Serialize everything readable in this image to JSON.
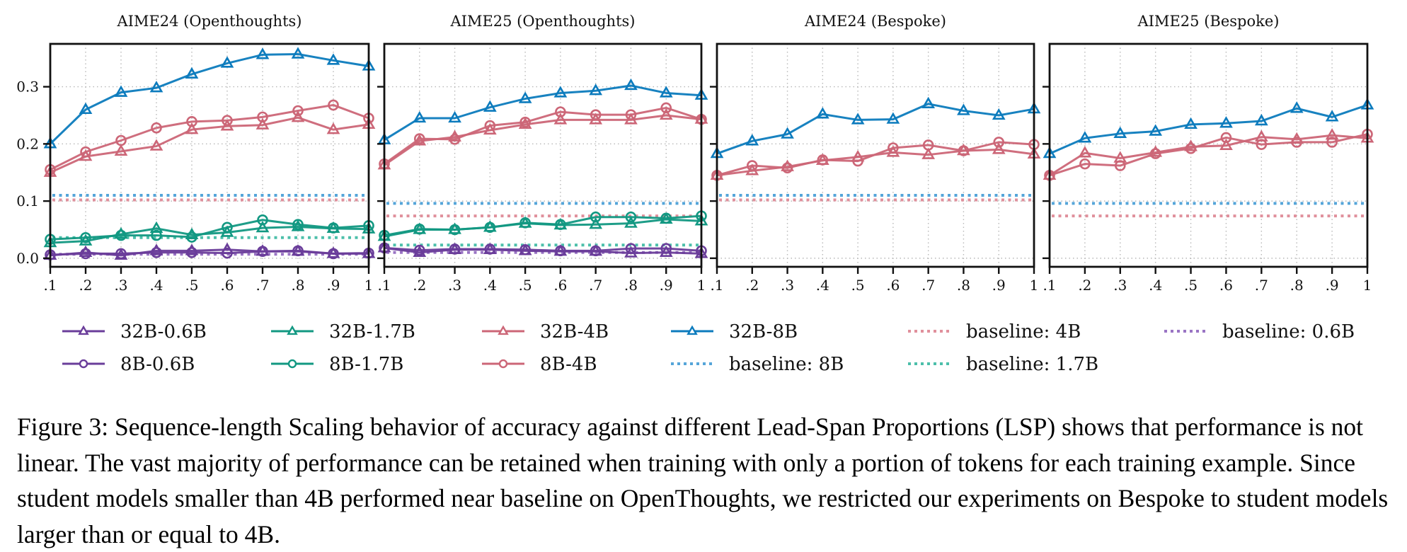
{
  "chart_data": [
    {
      "type": "line",
      "title": "AIME24 (Openthoughts)",
      "xlabel": "",
      "ylabel": "",
      "x": [
        0.1,
        0.2,
        0.3,
        0.4,
        0.5,
        0.6,
        0.7,
        0.8,
        0.9,
        1.0
      ],
      "xtick_labels": [
        ".1",
        ".2",
        ".3",
        ".4",
        ".5",
        ".6",
        ".7",
        ".8",
        ".9",
        "1"
      ],
      "yticks": [
        0.0,
        0.1,
        0.2,
        0.3
      ],
      "ytick_labels": [
        "0.0",
        "0.1",
        "0.2",
        "0.3"
      ],
      "show_yticklabels": true,
      "ylim": [
        -0.015,
        0.375
      ],
      "grid": true,
      "series": [
        {
          "name": "32B-0.6B",
          "values": [
            0.005,
            0.01,
            0.005,
            0.013,
            0.013,
            0.015,
            0.012,
            0.012,
            0.008,
            0.008
          ]
        },
        {
          "name": "8B-0.6B",
          "values": [
            0.006,
            0.008,
            0.008,
            0.01,
            0.01,
            0.009,
            0.012,
            0.013,
            0.008,
            0.009
          ]
        },
        {
          "name": "32B-1.7B",
          "values": [
            0.027,
            0.03,
            0.042,
            0.052,
            0.041,
            0.045,
            0.053,
            0.055,
            0.052,
            0.051
          ]
        },
        {
          "name": "8B-1.7B",
          "values": [
            0.033,
            0.036,
            0.04,
            0.04,
            0.037,
            0.054,
            0.067,
            0.059,
            0.053,
            0.057
          ]
        },
        {
          "name": "32B-4B",
          "values": [
            0.15,
            0.178,
            0.187,
            0.196,
            0.225,
            0.231,
            0.233,
            0.246,
            0.225,
            0.234
          ]
        },
        {
          "name": "8B-4B",
          "values": [
            0.155,
            0.186,
            0.206,
            0.228,
            0.239,
            0.241,
            0.247,
            0.258,
            0.268,
            0.245
          ]
        },
        {
          "name": "32B-8B",
          "values": [
            0.2,
            0.26,
            0.29,
            0.298,
            0.322,
            0.341,
            0.356,
            0.357,
            0.346,
            0.336
          ]
        }
      ],
      "baselines": [
        {
          "name": "baseline: 8B",
          "value": 0.11
        },
        {
          "name": "baseline: 4B",
          "value": 0.102
        },
        {
          "name": "baseline: 1.7B",
          "value": 0.036
        },
        {
          "name": "baseline: 0.6B",
          "value": 0.007
        }
      ]
    },
    {
      "type": "line",
      "title": "AIME25 (Openthoughts)",
      "xlabel": "",
      "ylabel": "",
      "x": [
        0.1,
        0.2,
        0.3,
        0.4,
        0.5,
        0.6,
        0.7,
        0.8,
        0.9,
        1.0
      ],
      "xtick_labels": [
        ".1",
        ".2",
        ".3",
        ".4",
        ".5",
        ".6",
        ".7",
        ".8",
        ".9",
        "1"
      ],
      "yticks": [
        0.0,
        0.1,
        0.2,
        0.3
      ],
      "ytick_labels": [
        "",
        "",
        "",
        ""
      ],
      "show_yticklabels": false,
      "ylim": [
        -0.015,
        0.375
      ],
      "grid": true,
      "series": [
        {
          "name": "32B-0.6B",
          "values": [
            0.018,
            0.01,
            0.015,
            0.015,
            0.013,
            0.012,
            0.012,
            0.009,
            0.01,
            0.008
          ]
        },
        {
          "name": "8B-0.6B",
          "values": [
            0.018,
            0.014,
            0.016,
            0.016,
            0.015,
            0.013,
            0.013,
            0.017,
            0.017,
            0.013
          ]
        },
        {
          "name": "32B-1.7B",
          "values": [
            0.038,
            0.05,
            0.05,
            0.054,
            0.061,
            0.058,
            0.059,
            0.061,
            0.068,
            0.065
          ]
        },
        {
          "name": "8B-1.7B",
          "values": [
            0.04,
            0.051,
            0.05,
            0.054,
            0.062,
            0.059,
            0.072,
            0.072,
            0.07,
            0.074
          ]
        },
        {
          "name": "32B-4B",
          "values": [
            0.163,
            0.205,
            0.212,
            0.224,
            0.234,
            0.242,
            0.242,
            0.242,
            0.25,
            0.243
          ]
        },
        {
          "name": "8B-4B",
          "values": [
            0.165,
            0.209,
            0.208,
            0.232,
            0.238,
            0.256,
            0.251,
            0.251,
            0.263,
            0.243
          ]
        },
        {
          "name": "32B-8B",
          "values": [
            0.207,
            0.245,
            0.245,
            0.264,
            0.279,
            0.289,
            0.293,
            0.302,
            0.289,
            0.285
          ]
        }
      ],
      "baselines": [
        {
          "name": "baseline: 8B",
          "value": 0.096
        },
        {
          "name": "baseline: 4B",
          "value": 0.074
        },
        {
          "name": "baseline: 1.7B",
          "value": 0.023
        },
        {
          "name": "baseline: 0.6B",
          "value": 0.01
        }
      ]
    },
    {
      "type": "line",
      "title": "AIME24 (Bespoke)",
      "xlabel": "",
      "ylabel": "",
      "x": [
        0.1,
        0.2,
        0.3,
        0.4,
        0.5,
        0.6,
        0.7,
        0.8,
        0.9,
        1.0
      ],
      "xtick_labels": [
        ".1",
        ".2",
        ".3",
        ".4",
        ".5",
        ".6",
        ".7",
        ".8",
        ".9",
        "1"
      ],
      "yticks": [
        0.0,
        0.1,
        0.2,
        0.3
      ],
      "ytick_labels": [
        "",
        "",
        "",
        ""
      ],
      "show_yticklabels": false,
      "ylim": [
        -0.015,
        0.375
      ],
      "grid": true,
      "series": [
        {
          "name": "32B-4B",
          "values": [
            0.145,
            0.153,
            0.16,
            0.171,
            0.177,
            0.185,
            0.181,
            0.188,
            0.19,
            0.182
          ]
        },
        {
          "name": "8B-4B",
          "values": [
            0.145,
            0.162,
            0.158,
            0.172,
            0.17,
            0.193,
            0.198,
            0.188,
            0.203,
            0.199
          ]
        },
        {
          "name": "32B-8B",
          "values": [
            0.183,
            0.205,
            0.217,
            0.252,
            0.242,
            0.243,
            0.27,
            0.258,
            0.25,
            0.261
          ]
        }
      ],
      "baselines": [
        {
          "name": "baseline: 8B",
          "value": 0.11
        },
        {
          "name": "baseline: 4B",
          "value": 0.102
        }
      ]
    },
    {
      "type": "line",
      "title": "AIME25 (Bespoke)",
      "xlabel": "",
      "ylabel": "",
      "x": [
        0.1,
        0.2,
        0.3,
        0.4,
        0.5,
        0.6,
        0.7,
        0.8,
        0.9,
        1.0
      ],
      "xtick_labels": [
        ".1",
        ".2",
        ".3",
        ".4",
        ".5",
        ".6",
        ".7",
        ".8",
        ".9",
        "1"
      ],
      "yticks": [
        0.0,
        0.1,
        0.2,
        0.3
      ],
      "ytick_labels": [
        "",
        "",
        "",
        ""
      ],
      "show_yticklabels": false,
      "ylim": [
        -0.015,
        0.375
      ],
      "grid": true,
      "series": [
        {
          "name": "32B-4B",
          "values": [
            0.145,
            0.184,
            0.175,
            0.185,
            0.195,
            0.197,
            0.212,
            0.208,
            0.215,
            0.21
          ]
        },
        {
          "name": "8B-4B",
          "values": [
            0.145,
            0.165,
            0.162,
            0.183,
            0.192,
            0.211,
            0.199,
            0.203,
            0.203,
            0.217
          ]
        },
        {
          "name": "32B-8B",
          "values": [
            0.183,
            0.21,
            0.218,
            0.222,
            0.234,
            0.236,
            0.24,
            0.262,
            0.247,
            0.268
          ]
        }
      ],
      "baselines": [
        {
          "name": "baseline: 8B",
          "value": 0.096
        },
        {
          "name": "baseline: 4B",
          "value": 0.074
        }
      ]
    }
  ],
  "series_styles": {
    "32B-0.6B": {
      "color": "#6a3d9a",
      "marker": "triangle"
    },
    "8B-0.6B": {
      "color": "#6a3d9a",
      "marker": "circle"
    },
    "32B-1.7B": {
      "color": "#129882",
      "marker": "triangle"
    },
    "8B-1.7B": {
      "color": "#129882",
      "marker": "circle"
    },
    "32B-4B": {
      "color": "#cc6677",
      "marker": "triangle"
    },
    "8B-4B": {
      "color": "#cc6677",
      "marker": "circle"
    },
    "32B-8B": {
      "color": "#0c7bbd",
      "marker": "triangle"
    },
    "baseline: 8B": {
      "color": "#55a5d9",
      "marker": "dotted"
    },
    "baseline: 4B": {
      "color": "#e0909c",
      "marker": "dotted"
    },
    "baseline: 1.7B": {
      "color": "#4cbfaa",
      "marker": "dotted"
    },
    "baseline: 0.6B": {
      "color": "#9a74c4",
      "marker": "dotted"
    }
  },
  "legend": {
    "placement": "bottom",
    "rows": [
      [
        "32B-0.6B",
        "32B-1.7B",
        "32B-4B",
        "32B-8B",
        "baseline: 4B",
        "baseline: 0.6B"
      ],
      [
        "8B-0.6B",
        "8B-1.7B",
        "8B-4B",
        "baseline: 8B",
        "baseline: 1.7B"
      ]
    ]
  },
  "caption": "Figure 3: Sequence-length Scaling behavior of accuracy against different Lead-Span Proportions (LSP) shows that performance is not linear. The vast majority of performance can be retained when training with only a portion of tokens for each training example. Since student models smaller than 4B performed near baseline on OpenThoughts, we restricted our experiments on Bespoke to student models larger than or equal to 4B."
}
